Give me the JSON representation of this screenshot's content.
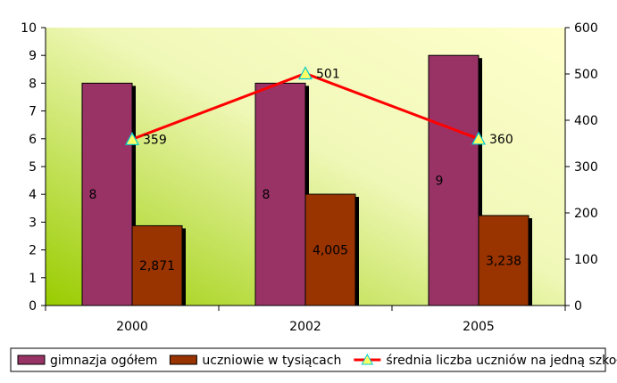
{
  "chart_data": {
    "type": "bar",
    "categories": [
      "2000",
      "2002",
      "2005"
    ],
    "ylim": [
      0,
      10
    ],
    "y2lim": [
      0,
      600
    ],
    "yticks": [
      0,
      1,
      2,
      3,
      4,
      5,
      6,
      7,
      8,
      9,
      10
    ],
    "y2ticks": [
      0,
      100,
      200,
      300,
      400,
      500,
      600
    ],
    "series": [
      {
        "name": "gimnazja ogółem",
        "type": "bar",
        "axis": "left",
        "values": [
          8,
          8,
          9
        ],
        "labels": [
          "8",
          "8",
          "9"
        ],
        "color": "#993366"
      },
      {
        "name": "uczniowie w tysiącach",
        "type": "bar",
        "axis": "left",
        "values": [
          2.871,
          4.005,
          3.238
        ],
        "labels": [
          "2,871",
          "4,005",
          "3,238"
        ],
        "color": "#993300"
      },
      {
        "name": "średnia liczba uczniów na jedną szkołę",
        "type": "line",
        "axis": "right",
        "values": [
          359,
          501,
          360
        ],
        "labels": [
          "359",
          "501",
          "360"
        ],
        "color": "#ff0000",
        "marker": "triangle",
        "marker_color": "#ffff66"
      }
    ],
    "legend_position": "bottom",
    "grid": false
  }
}
